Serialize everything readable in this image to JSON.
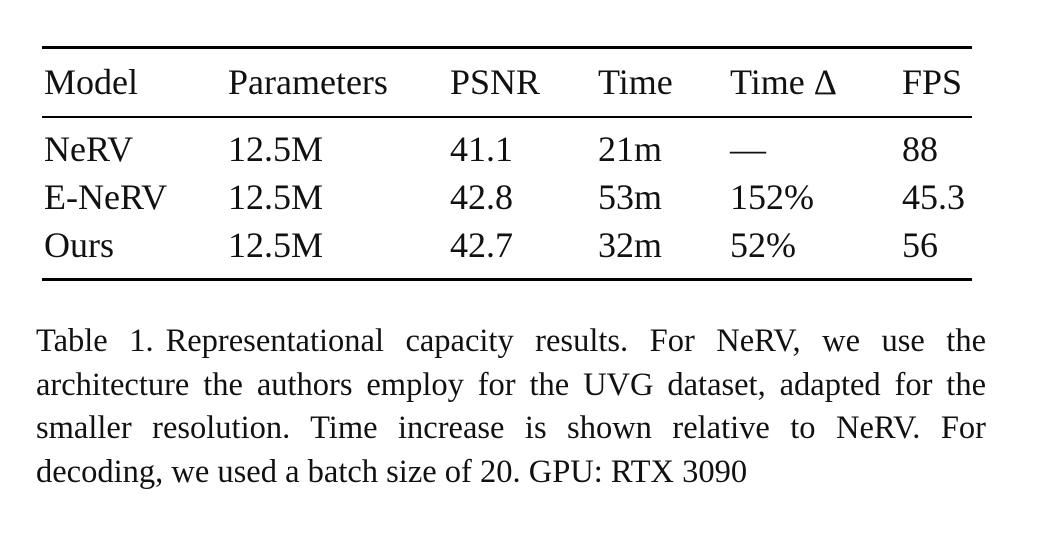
{
  "table": {
    "headers": [
      "Model",
      "Parameters",
      "PSNR",
      "Time",
      "Time Δ",
      "FPS"
    ],
    "rows": [
      [
        "NeRV",
        "12.5M",
        "41.1",
        "21m",
        "—",
        "88"
      ],
      [
        "E-NeRV",
        "12.5M",
        "42.8",
        "53m",
        "152%",
        "45.3"
      ],
      [
        "Ours",
        "12.5M",
        "42.7",
        "32m",
        "52%",
        "56"
      ]
    ]
  },
  "caption": {
    "label": "Table 1.",
    "text": "Representational capacity results. For NeRV, we use the architecture the authors employ for the UVG dataset, adapted for the smaller resolution.  Time increase is shown relative to NeRV. For decoding, we used a batch size of 20. GPU: RTX 3090"
  }
}
